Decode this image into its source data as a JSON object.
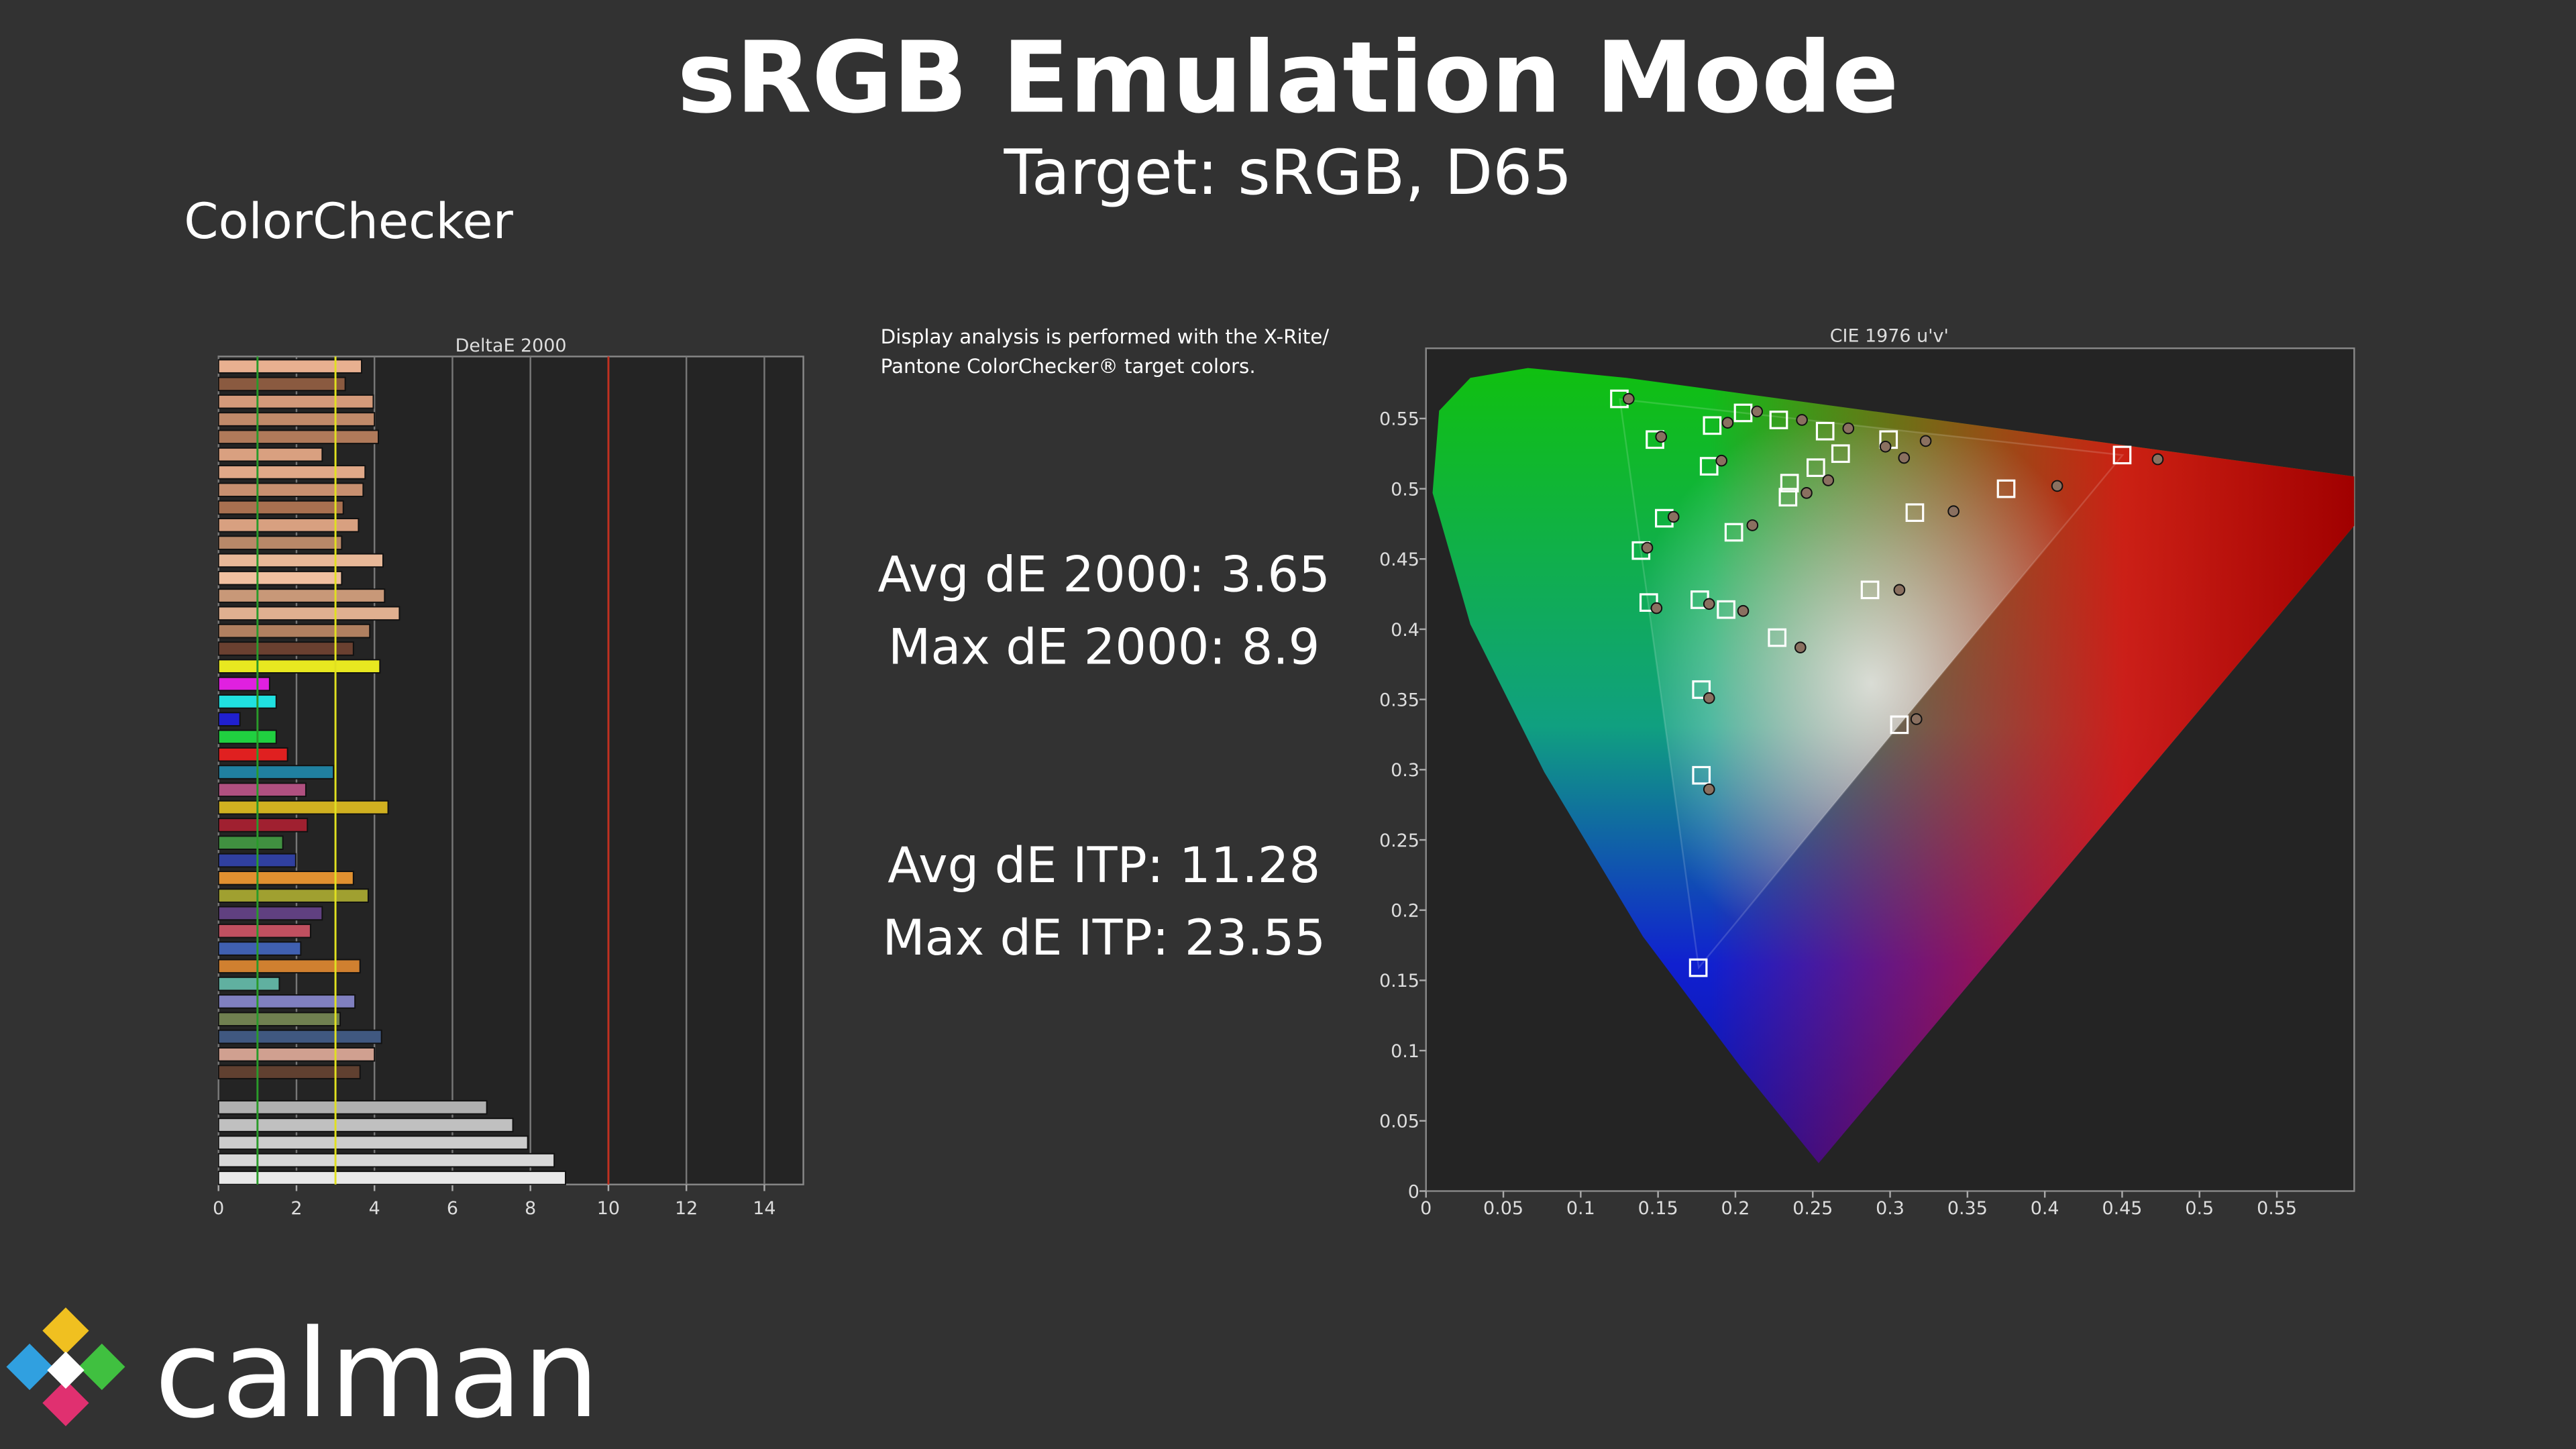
{
  "header": {
    "title": "sRGB Emulation Mode",
    "subtitle": "Target: sRGB, D65",
    "section": "ColorChecker"
  },
  "note": [
    "Display analysis is performed with the X-Rite/",
    "Pantone ColorChecker® target colors."
  ],
  "stats": [
    "Avg dE 2000: 3.65",
    "Max dE 2000: 8.9",
    "Avg dE ITP: 11.28",
    "Max dE ITP: 23.55"
  ],
  "logo": {
    "text": "calman"
  },
  "chart_data": [
    {
      "type": "hbar",
      "title": "DeltaE 2000",
      "values": [
        3.67,
        3.25,
        3.97,
        4.0,
        4.1,
        2.66,
        3.76,
        3.71,
        3.2,
        3.59,
        3.16,
        4.22,
        3.16,
        4.26,
        4.64,
        3.88,
        3.46,
        4.14,
        1.31,
        1.48,
        0.55,
        1.48,
        1.77,
        2.95,
        2.24,
        4.35,
        2.28,
        1.65,
        1.98,
        3.46,
        3.84,
        2.66,
        2.36,
        2.11,
        3.63,
        1.56,
        3.5,
        3.12,
        4.18,
        4.0,
        3.63,
        null,
        6.88,
        7.55,
        7.93,
        8.61,
        8.9
      ],
      "colors": [
        "#e8b090",
        "#8a5a40",
        "#d49a7a",
        "#c08a6a",
        "#b07a5a",
        "#d9a080",
        "#e0a888",
        "#c89070",
        "#a87050",
        "#d8a080",
        "#b88868",
        "#e8b898",
        "#f0c0a0",
        "#c89878",
        "#e0b090",
        "#b08060",
        "#6a4030",
        "#e8e820",
        "#e020e0",
        "#20e0e0",
        "#2020d0",
        "#20d040",
        "#e02020",
        "#2080a0",
        "#b05080",
        "#d0b020",
        "#a02030",
        "#409040",
        "#3040a0",
        "#e09030",
        "#a0a030",
        "#604080",
        "#c05060",
        "#4060b0",
        "#d08030",
        "#60b0a0",
        "#8080c0",
        "#708050",
        "#405880",
        "#d0a090",
        "#604030",
        null,
        "#b0b0b0",
        "#c0c0c0",
        "#cccccc",
        "#d8d8d8",
        "#e8e8e8"
      ],
      "xlim": [
        0,
        15
      ],
      "xticks": [
        0,
        2,
        4,
        6,
        8,
        10,
        12,
        14
      ],
      "grid": true,
      "reference_lines": [
        {
          "value": 1,
          "color": "#2a9a2a"
        },
        {
          "value": 3,
          "color": "#e0e020"
        },
        {
          "value": 10,
          "color": "#c03020"
        }
      ]
    },
    {
      "type": "scatter",
      "title": "CIE 1976 u'v'",
      "xlim": [
        0,
        0.6
      ],
      "ylim": [
        0,
        0.6
      ],
      "xticks": [
        0,
        0.05,
        0.1,
        0.15,
        0.2,
        0.25,
        0.3,
        0.35,
        0.4,
        0.45,
        0.5,
        0.55
      ],
      "yticks": [
        0,
        0.05,
        0.1,
        0.15,
        0.2,
        0.25,
        0.3,
        0.35,
        0.4,
        0.45,
        0.5,
        0.55
      ],
      "series": [
        {
          "marker": "square",
          "color": "#ffffff",
          "x": [
            0.125,
            0.148,
            0.205,
            0.185,
            0.228,
            0.258,
            0.299,
            0.183,
            0.154,
            0.139,
            0.199,
            0.234,
            0.144,
            0.177,
            0.194,
            0.227,
            0.287,
            0.316,
            0.375,
            0.45,
            0.178,
            0.178,
            0.306,
            0.176,
            0.268,
            0.252,
            0.235
          ],
          "values": [
            0.564,
            0.535,
            0.554,
            0.545,
            0.549,
            0.541,
            0.535,
            0.516,
            0.479,
            0.456,
            0.469,
            0.494,
            0.419,
            0.421,
            0.414,
            0.394,
            0.428,
            0.483,
            0.5,
            0.524,
            0.357,
            0.296,
            0.332,
            0.159,
            0.525,
            0.515,
            0.504
          ]
        },
        {
          "marker": "circle",
          "color": "#8a7060",
          "x": [
            0.131,
            0.152,
            0.195,
            0.214,
            0.243,
            0.273,
            0.297,
            0.323,
            0.191,
            0.16,
            0.211,
            0.143,
            0.149,
            0.183,
            0.205,
            0.242,
            0.306,
            0.341,
            0.408,
            0.473,
            0.183,
            0.183,
            0.317,
            0.309,
            0.26,
            0.246
          ],
          "values": [
            0.564,
            0.537,
            0.547,
            0.555,
            0.549,
            0.543,
            0.53,
            0.534,
            0.52,
            0.48,
            0.474,
            0.458,
            0.415,
            0.418,
            0.413,
            0.387,
            0.428,
            0.484,
            0.502,
            0.521,
            0.351,
            0.286,
            0.336,
            0.522,
            0.506,
            0.497
          ]
        }
      ]
    }
  ]
}
